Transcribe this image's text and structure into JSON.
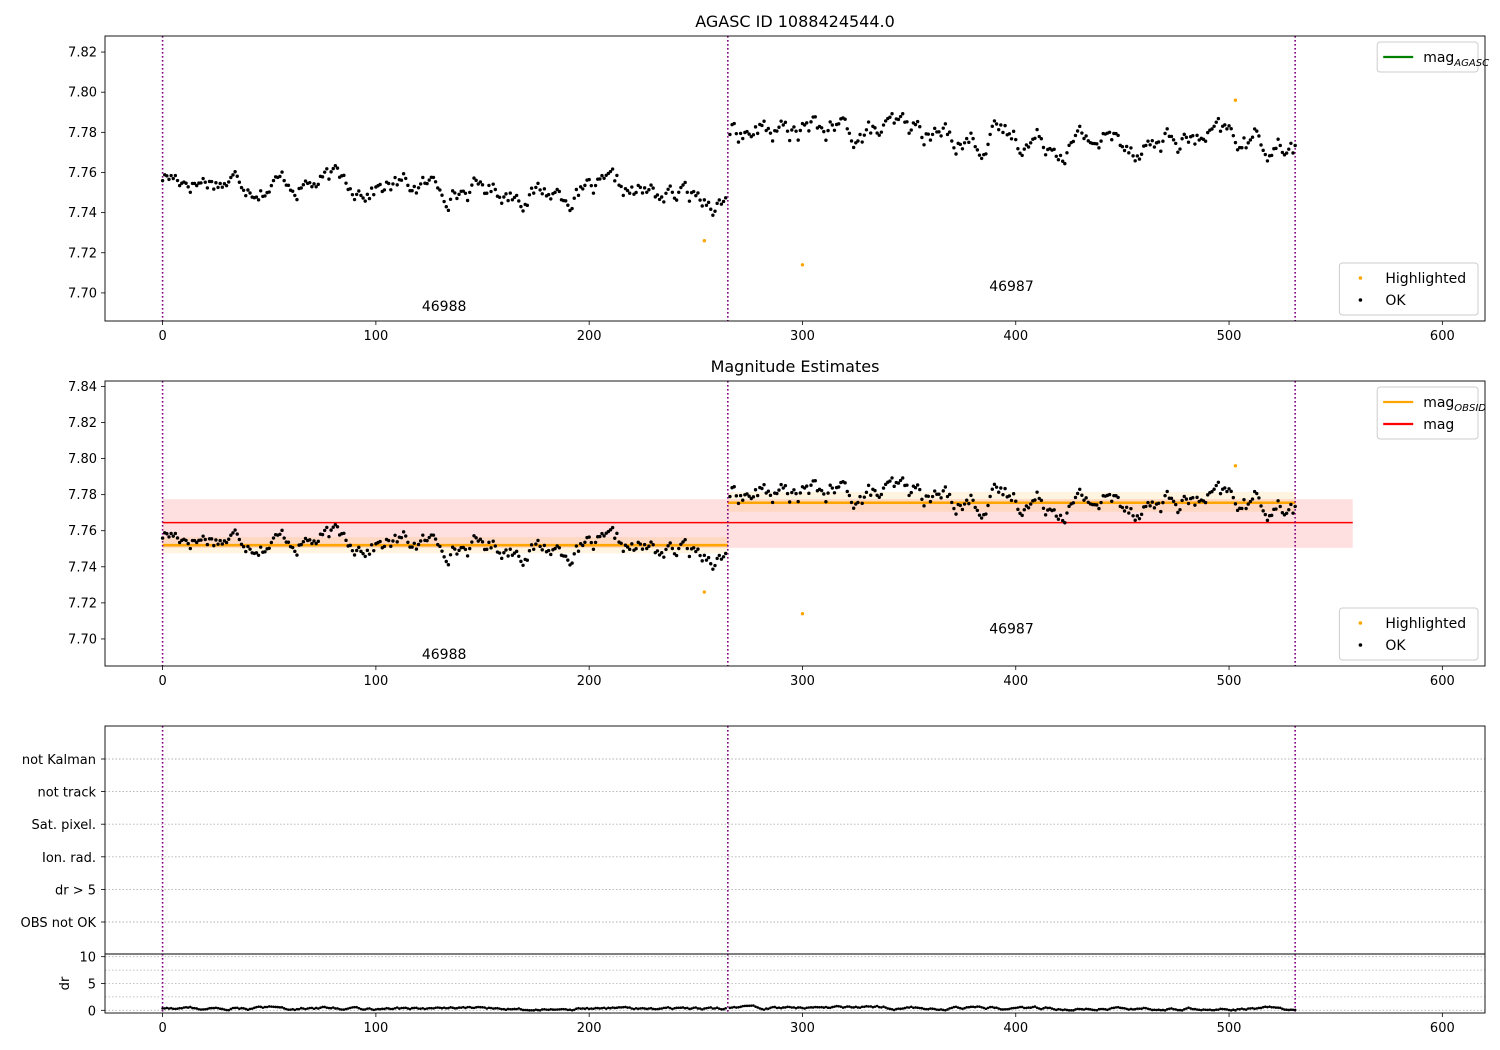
{
  "chart_data": [
    {
      "type": "scatter",
      "title": "AGASC ID 1088424544.0",
      "xlim": [
        -27,
        620
      ],
      "ylim": [
        7.686,
        7.828
      ],
      "xticks": [
        0,
        100,
        200,
        300,
        400,
        500,
        600
      ],
      "yticks": [
        7.7,
        7.72,
        7.74,
        7.76,
        7.78,
        7.8,
        7.82
      ],
      "grid": false,
      "obs_boundaries": [
        0,
        265,
        531
      ],
      "obs_labels": [
        {
          "x": 132,
          "y": 7.691,
          "text": "46988"
        },
        {
          "x": 398,
          "y": 7.701,
          "text": "46987"
        }
      ],
      "series": [
        {
          "name": "Highlighted",
          "color": "#ffa500",
          "points": [
            [
              254,
              7.726
            ],
            [
              300,
              7.714
            ],
            [
              503,
              7.796
            ]
          ]
        },
        {
          "name": "OK",
          "color": "#000000",
          "segments": [
            {
              "x0": 0,
              "x1": 264,
              "y_start": 7.758,
              "y_end": 7.747,
              "noise": 0.006
            },
            {
              "x0": 266,
              "x1": 531,
              "y_start": 7.781,
              "y_end": 7.774,
              "noise": 0.007
            }
          ]
        }
      ],
      "lines": [
        {
          "name": "mag_AGASC",
          "color": "#008000"
        }
      ],
      "legends": [
        {
          "position": "top-right",
          "entries": [
            {
              "label": "mag",
              "sub": "AGASC",
              "kind": "line",
              "color": "#008000"
            }
          ]
        },
        {
          "position": "bottom-right",
          "entries": [
            {
              "label": "Highlighted",
              "kind": "dot",
              "color": "#ffa500"
            },
            {
              "label": "OK",
              "kind": "dot",
              "color": "#000000"
            }
          ]
        }
      ]
    },
    {
      "type": "scatter",
      "title": "Magnitude Estimates",
      "xlim": [
        -27,
        620
      ],
      "ylim": [
        7.685,
        7.843
      ],
      "xticks": [
        0,
        100,
        200,
        300,
        400,
        500,
        600
      ],
      "yticks": [
        7.7,
        7.72,
        7.74,
        7.76,
        7.78,
        7.8,
        7.82,
        7.84
      ],
      "grid": false,
      "obs_boundaries": [
        0,
        265,
        531
      ],
      "obs_labels": [
        {
          "x": 132,
          "y": 7.689,
          "text": "46988"
        },
        {
          "x": 398,
          "y": 7.703,
          "text": "46987"
        }
      ],
      "bands": [
        {
          "x0": 0,
          "x1": 558,
          "y0": 7.7505,
          "y1": 7.7775,
          "color": "#ff0000",
          "opacity": 0.12
        },
        {
          "x0": 0,
          "x1": 265,
          "y0": 7.7475,
          "y1": 7.7565,
          "color": "#ffa500",
          "opacity": 0.12
        },
        {
          "x0": 265,
          "x1": 531,
          "y0": 7.7705,
          "y1": 7.7815,
          "color": "#ffa500",
          "opacity": 0.12
        }
      ],
      "hlines": [
        {
          "name": "mag",
          "x0": 0,
          "x1": 558,
          "y": 7.7645,
          "color": "#ff0000",
          "width": 1.5
        },
        {
          "name": "mag_OBSID 46988",
          "x0": 0,
          "x1": 265,
          "y": 7.752,
          "color": "#ffa500",
          "width": 2.6
        },
        {
          "name": "mag_OBSID 46987",
          "x0": 265,
          "x1": 531,
          "y": 7.7755,
          "color": "#ffa500",
          "width": 2.6
        }
      ],
      "series": [
        {
          "name": "Highlighted",
          "color": "#ffa500",
          "points": [
            [
              254,
              7.726
            ],
            [
              300,
              7.714
            ],
            [
              503,
              7.796
            ]
          ]
        },
        {
          "name": "OK",
          "color": "#000000",
          "segments": [
            {
              "x0": 0,
              "x1": 264,
              "y_start": 7.758,
              "y_end": 7.747,
              "noise": 0.006
            },
            {
              "x0": 266,
              "x1": 531,
              "y_start": 7.781,
              "y_end": 7.774,
              "noise": 0.007
            }
          ]
        }
      ],
      "legends": [
        {
          "position": "top-right",
          "entries": [
            {
              "label": "mag",
              "sub": "OBSID",
              "kind": "line",
              "color": "#ffa500"
            },
            {
              "label": "mag",
              "kind": "line",
              "color": "#ff0000"
            }
          ]
        },
        {
          "position": "bottom-right",
          "entries": [
            {
              "label": "Highlighted",
              "kind": "dot",
              "color": "#ffa500"
            },
            {
              "label": "OK",
              "kind": "dot",
              "color": "#000000"
            }
          ]
        }
      ]
    },
    {
      "type": "scatter",
      "title": "",
      "xlim": [
        -27,
        620
      ],
      "categories": [
        "not Kalman",
        "not track",
        "Sat. pixel.",
        "Ion. rad.",
        "dr > 5",
        "OBS not OK"
      ],
      "grid": true,
      "obs_boundaries": [
        0,
        265,
        531
      ]
    },
    {
      "type": "scatter",
      "title": "",
      "xlim": [
        -27,
        620
      ],
      "ylim": [
        -0.5,
        10.5
      ],
      "xticks": [
        0,
        100,
        200,
        300,
        400,
        500,
        600
      ],
      "yticks": [
        0,
        5,
        10
      ],
      "ylabel": "dr",
      "grid": true,
      "obs_boundaries": [
        0,
        265,
        531
      ],
      "series": [
        {
          "name": "dr",
          "color": "#000000",
          "segments": [
            {
              "x0": 0,
              "x1": 264,
              "y_start": 0.4,
              "y_end": 0.3,
              "noise": 0.25
            },
            {
              "x0": 266,
              "x1": 531,
              "y_start": 0.5,
              "y_end": 0.3,
              "noise": 0.25
            }
          ]
        }
      ]
    }
  ]
}
